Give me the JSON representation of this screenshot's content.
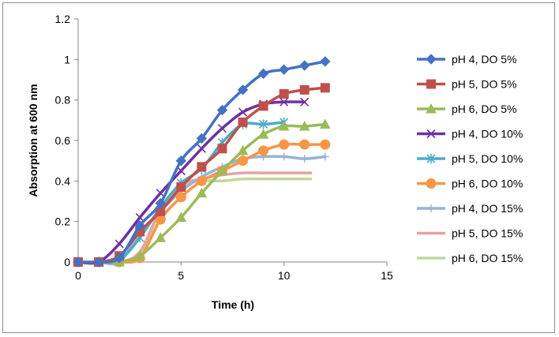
{
  "chart_data": {
    "type": "line",
    "title": "",
    "xlabel": "Time (h)",
    "ylabel": "Absorption at 600 nm",
    "xlim": [
      0,
      15
    ],
    "ylim": [
      0,
      1.2
    ],
    "xticks": [
      0,
      5,
      10,
      15
    ],
    "yticks": [
      0,
      0.2,
      0.4,
      0.6,
      0.8,
      1,
      1.2
    ],
    "xtick_labels": [
      "0",
      "5",
      "10",
      "15"
    ],
    "ytick_labels": [
      "0",
      "0.2",
      "0.4",
      "0.6",
      "0.8",
      "1",
      "1.2"
    ],
    "grid": false,
    "legend_position": "right",
    "series": [
      {
        "name": "pH 4, DO 5%",
        "color": "#4472C4",
        "marker": "diamond",
        "x": [
          0,
          1,
          2,
          3,
          4,
          5,
          6,
          7,
          8,
          9,
          10,
          11,
          12
        ],
        "y": [
          0,
          0,
          0.02,
          0.18,
          0.29,
          0.5,
          0.61,
          0.75,
          0.85,
          0.93,
          0.95,
          0.97,
          0.99
        ]
      },
      {
        "name": "pH 5, DO 5%",
        "color": "#C0504D",
        "marker": "square",
        "x": [
          0,
          1,
          2,
          3,
          4,
          5,
          6,
          7,
          8,
          9,
          10,
          11,
          12
        ],
        "y": [
          0,
          0,
          0.03,
          0.15,
          0.25,
          0.37,
          0.47,
          0.56,
          0.69,
          0.77,
          0.83,
          0.85,
          0.86
        ]
      },
      {
        "name": "pH 6, DO 5%",
        "color": "#9BBB59",
        "marker": "triangle",
        "x": [
          0,
          1,
          2,
          3,
          4,
          5,
          6,
          7,
          8,
          9,
          10,
          11,
          12
        ],
        "y": [
          0,
          0,
          0,
          0.03,
          0.12,
          0.22,
          0.34,
          0.45,
          0.55,
          0.63,
          0.67,
          0.67,
          0.68
        ]
      },
      {
        "name": "pH 4, DO 10%",
        "color": "#7030A0",
        "marker": "x",
        "x": [
          0,
          1,
          2,
          3,
          4,
          5,
          6,
          7,
          8,
          9,
          10,
          11
        ],
        "y": [
          0,
          0,
          0.09,
          0.22,
          0.34,
          0.45,
          0.56,
          0.66,
          0.74,
          0.78,
          0.79,
          0.79
        ]
      },
      {
        "name": "pH 5, DO 10%",
        "color": "#4BACC6",
        "marker": "star",
        "x": [
          0,
          1,
          2,
          3,
          4,
          5,
          6,
          7,
          8,
          9,
          10
        ],
        "y": [
          0,
          0,
          0.01,
          0.12,
          0.27,
          0.39,
          0.46,
          0.59,
          0.68,
          0.68,
          0.69
        ]
      },
      {
        "name": "pH 6, DO 10%",
        "color": "#F79646",
        "marker": "circle",
        "x": [
          0,
          1,
          2,
          3,
          4,
          5,
          6,
          7,
          8,
          9,
          10,
          11,
          12
        ],
        "y": [
          0,
          0,
          0,
          0.02,
          0.21,
          0.32,
          0.4,
          0.45,
          0.5,
          0.55,
          0.58,
          0.58,
          0.58
        ]
      },
      {
        "name": "pH 4, DO 15%",
        "color": "#95B3D7",
        "marker": "plus",
        "x": [
          0,
          1,
          2,
          3,
          4,
          5,
          6,
          7,
          8,
          9,
          10,
          11,
          12
        ],
        "y": [
          0,
          0,
          0,
          0.14,
          0.25,
          0.35,
          0.42,
          0.47,
          0.51,
          0.52,
          0.52,
          0.51,
          0.52
        ]
      },
      {
        "name": "pH 5, DO 15%",
        "color": "#E6A3A0",
        "marker": "none",
        "x": [
          0,
          1,
          2,
          3,
          4,
          5,
          6,
          7,
          8,
          9,
          10,
          11,
          11.3
        ],
        "y": [
          0,
          0,
          0,
          0.05,
          0.26,
          0.38,
          0.41,
          0.43,
          0.44,
          0.44,
          0.44,
          0.44,
          0.44
        ]
      },
      {
        "name": "pH 6, DO 15%",
        "color": "#C3D69B",
        "marker": "none",
        "x": [
          0,
          1,
          2,
          3,
          4,
          5,
          6,
          7,
          8,
          9,
          10,
          11,
          11.3
        ],
        "y": [
          0,
          0,
          0,
          0.04,
          0.25,
          0.37,
          0.4,
          0.4,
          0.41,
          0.41,
          0.41,
          0.41,
          0.41
        ]
      }
    ]
  }
}
